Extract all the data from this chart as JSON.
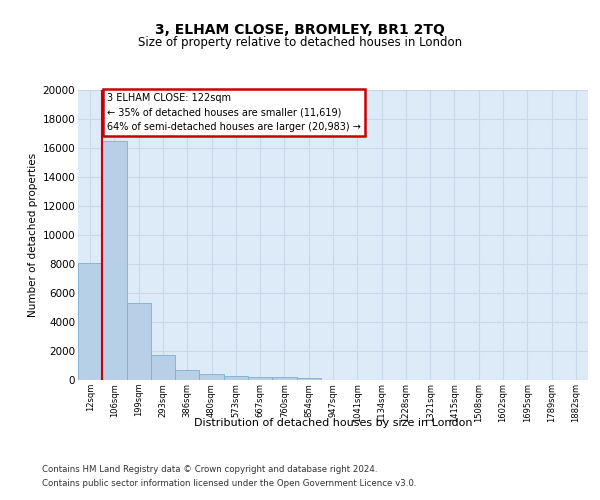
{
  "title": "3, ELHAM CLOSE, BROMLEY, BR1 2TQ",
  "subtitle": "Size of property relative to detached houses in London",
  "xlabel": "Distribution of detached houses by size in London",
  "ylabel": "Number of detached properties",
  "bar_color": "#b8cfe8",
  "bar_edge_color": "#7aafd4",
  "grid_color": "#c8d8ea",
  "background_color": "#ddeaf7",
  "categories": [
    "12sqm",
    "106sqm",
    "199sqm",
    "293sqm",
    "386sqm",
    "480sqm",
    "573sqm",
    "667sqm",
    "760sqm",
    "854sqm",
    "947sqm",
    "1041sqm",
    "1134sqm",
    "1228sqm",
    "1321sqm",
    "1415sqm",
    "1508sqm",
    "1602sqm",
    "1695sqm",
    "1789sqm",
    "1882sqm"
  ],
  "values": [
    8100,
    16500,
    5300,
    1750,
    700,
    380,
    280,
    220,
    190,
    160,
    0,
    0,
    0,
    0,
    0,
    0,
    0,
    0,
    0,
    0,
    0
  ],
  "vline_x_idx": 0.5,
  "vline_color": "#cc0000",
  "annot_line1": "3 ELHAM CLOSE: 122sqm",
  "annot_line2": "← 35% of detached houses are smaller (11,619)",
  "annot_line3": "64% of semi-detached houses are larger (20,983) →",
  "annotation_box_edge_color": "#cc0000",
  "ylim": [
    0,
    20000
  ],
  "yticks": [
    0,
    2000,
    4000,
    6000,
    8000,
    10000,
    12000,
    14000,
    16000,
    18000,
    20000
  ],
  "footer_line1": "Contains HM Land Registry data © Crown copyright and database right 2024.",
  "footer_line2": "Contains public sector information licensed under the Open Government Licence v3.0."
}
